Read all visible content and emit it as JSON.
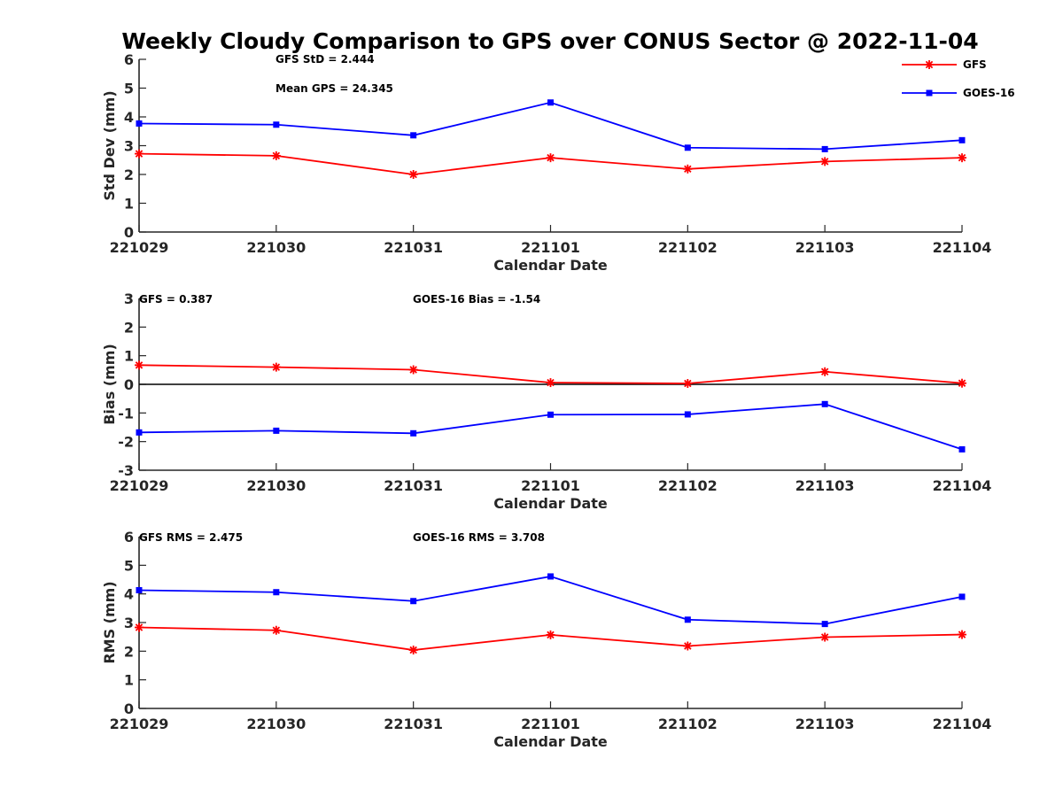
{
  "figure": {
    "title": "Weekly Cloudy Comparison to GPS over CONUS Sector @ 2022-11-04"
  },
  "legend": {
    "placement": "top-right",
    "entries": [
      {
        "label": "GFS",
        "color": "#ff0000",
        "marker": "asterisk"
      },
      {
        "label": "GOES-16",
        "color": "#0000ff",
        "marker": "square"
      }
    ]
  },
  "chart_data": [
    {
      "type": "line",
      "categories": [
        "221029",
        "221030",
        "221031",
        "221101",
        "221102",
        "221103",
        "221104"
      ],
      "xlabel": "Calendar Date",
      "ylabel": "Std Dev (mm)",
      "ylim": [
        0,
        6
      ],
      "yticks": [
        0,
        1,
        2,
        3,
        4,
        5,
        6
      ],
      "zero_line": false,
      "annotations": [
        "GFS StD = 2.444",
        "Mean GPS = 24.345"
      ],
      "series": [
        {
          "name": "GFS",
          "color": "#ff0000",
          "marker": "asterisk",
          "values": [
            2.72,
            2.65,
            2.0,
            2.58,
            2.19,
            2.45,
            2.58
          ]
        },
        {
          "name": "GOES-16",
          "color": "#0000ff",
          "marker": "square",
          "values": [
            3.77,
            3.73,
            3.36,
            4.5,
            2.93,
            2.88,
            3.19
          ]
        }
      ]
    },
    {
      "type": "line",
      "categories": [
        "221029",
        "221030",
        "221031",
        "221101",
        "221102",
        "221103",
        "221104"
      ],
      "xlabel": "Calendar Date",
      "ylabel": "Bias (mm)",
      "ylim": [
        -3,
        3
      ],
      "yticks": [
        -3,
        -2,
        -1,
        0,
        1,
        2,
        3
      ],
      "zero_line": true,
      "annotations": [
        "GFS = 0.387",
        "GOES-16 Bias  = -1.54"
      ],
      "series": [
        {
          "name": "GFS",
          "color": "#ff0000",
          "marker": "asterisk",
          "values": [
            0.67,
            0.6,
            0.51,
            0.06,
            0.03,
            0.44,
            0.04
          ]
        },
        {
          "name": "GOES-16",
          "color": "#0000ff",
          "marker": "square",
          "values": [
            -1.68,
            -1.62,
            -1.71,
            -1.06,
            -1.05,
            -0.69,
            -2.27
          ]
        }
      ]
    },
    {
      "type": "line",
      "categories": [
        "221029",
        "221030",
        "221031",
        "221101",
        "221102",
        "221103",
        "221104"
      ],
      "xlabel": "Calendar Date",
      "ylabel": "RMS (mm)",
      "ylim": [
        0,
        6
      ],
      "yticks": [
        0,
        1,
        2,
        3,
        4,
        5,
        6
      ],
      "zero_line": false,
      "annotations": [
        "GFS RMS = 2.475",
        "GOES-16 RMS = 3.708"
      ],
      "series": [
        {
          "name": "GFS",
          "color": "#ff0000",
          "marker": "asterisk",
          "values": [
            2.83,
            2.73,
            2.04,
            2.57,
            2.18,
            2.49,
            2.58
          ]
        },
        {
          "name": "GOES-16",
          "color": "#0000ff",
          "marker": "square",
          "values": [
            4.13,
            4.06,
            3.75,
            4.61,
            3.1,
            2.95,
            3.9
          ]
        }
      ]
    }
  ]
}
